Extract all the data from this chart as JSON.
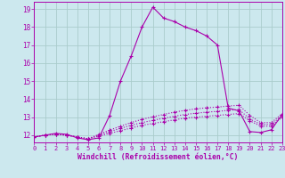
{
  "xlabel": "Windchill (Refroidissement éolien,°C)",
  "bg_color": "#cce8ee",
  "grid_color": "#aacccc",
  "line_color": "#aa00aa",
  "xmin": 0,
  "xmax": 23,
  "ymin": 11.6,
  "ymax": 19.4,
  "yticks": [
    12,
    13,
    14,
    15,
    16,
    17,
    18,
    19
  ],
  "xticks": [
    0,
    1,
    2,
    3,
    4,
    5,
    6,
    7,
    8,
    9,
    10,
    11,
    12,
    13,
    14,
    15,
    16,
    17,
    18,
    19,
    20,
    21,
    22,
    23
  ],
  "curve1": [
    11.9,
    12.0,
    12.1,
    12.05,
    11.85,
    11.75,
    11.85,
    13.1,
    15.0,
    16.4,
    18.0,
    19.1,
    18.5,
    18.3,
    18.0,
    17.8,
    17.5,
    17.0,
    13.5,
    13.35,
    12.2,
    12.15,
    12.3,
    13.15
  ],
  "curve2": [
    11.9,
    12.0,
    12.05,
    12.0,
    11.9,
    11.8,
    11.95,
    12.1,
    12.25,
    12.4,
    12.55,
    12.65,
    12.75,
    12.85,
    12.95,
    13.0,
    13.05,
    13.1,
    13.15,
    13.2,
    12.8,
    12.5,
    12.5,
    13.0
  ],
  "curve3": [
    11.9,
    12.0,
    12.05,
    12.0,
    11.9,
    11.8,
    12.0,
    12.2,
    12.38,
    12.55,
    12.7,
    12.82,
    12.94,
    13.05,
    13.15,
    13.22,
    13.28,
    13.32,
    13.38,
    13.42,
    12.9,
    12.6,
    12.6,
    13.1
  ],
  "curve4": [
    11.9,
    12.0,
    12.05,
    12.0,
    11.9,
    11.8,
    12.05,
    12.28,
    12.5,
    12.7,
    12.88,
    13.02,
    13.15,
    13.28,
    13.38,
    13.46,
    13.52,
    13.56,
    13.62,
    13.66,
    13.1,
    12.7,
    12.7,
    13.2
  ]
}
